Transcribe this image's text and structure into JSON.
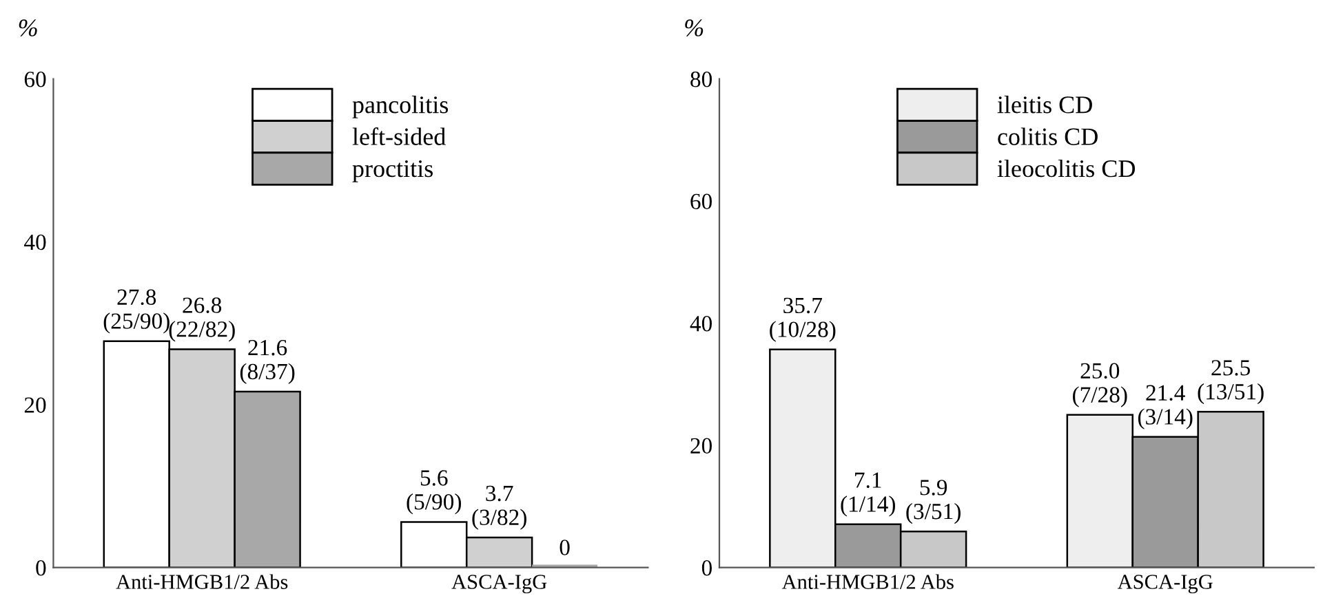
{
  "chart_data": [
    {
      "type": "bar",
      "ylabel": "%",
      "categories": [
        "Anti-HMGB1/2 Abs",
        "ASCA-IgG"
      ],
      "ylim": [
        0,
        60
      ],
      "yticks": [
        0,
        20,
        40,
        60
      ],
      "grid": false,
      "legend": "top",
      "series": [
        {
          "name": "pancolitis",
          "color": "#ffffff",
          "values": [
            27.8,
            5.6
          ],
          "value_labels": [
            "27.8\n(25/90)",
            "5.6\n(5/90)"
          ]
        },
        {
          "name": "left-sided",
          "color": "#d0d0d0",
          "values": [
            26.8,
            3.7
          ],
          "value_labels": [
            "26.8\n(22/82)",
            "3.7\n(3/82)"
          ]
        },
        {
          "name": "proctitis",
          "color": "#a8a8a8",
          "values": [
            21.6,
            0
          ],
          "value_labels": [
            "21.6\n(8/37)",
            "0"
          ]
        }
      ]
    },
    {
      "type": "bar",
      "ylabel": "%",
      "categories": [
        "Anti-HMGB1/2 Abs",
        "ASCA-IgG"
      ],
      "ylim": [
        0,
        80
      ],
      "yticks": [
        0,
        20,
        40,
        60,
        80
      ],
      "grid": false,
      "legend": "top",
      "series": [
        {
          "name": "ileitis CD",
          "color": "#eeeeee",
          "values": [
            35.7,
            25.0
          ],
          "value_labels": [
            "35.7\n(10/28)",
            "25.0\n(7/28)"
          ]
        },
        {
          "name": "colitis CD",
          "color": "#9a9a9a",
          "values": [
            7.1,
            21.4
          ],
          "value_labels": [
            "7.1\n(1/14)",
            "21.4\n(3/14)"
          ]
        },
        {
          "name": "ileocolitis CD",
          "color": "#c8c8c8",
          "values": [
            5.9,
            25.5
          ],
          "value_labels": [
            "5.9\n(3/51)",
            "25.5\n(13/51)"
          ]
        }
      ]
    }
  ]
}
